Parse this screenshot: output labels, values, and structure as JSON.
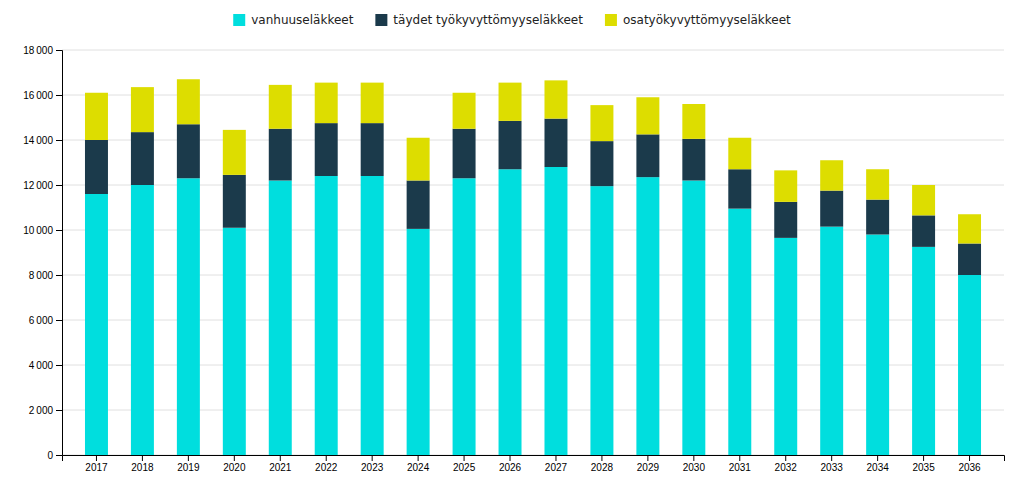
{
  "chart_data": {
    "type": "bar",
    "stacked": true,
    "grid": true,
    "legend": "top",
    "categories": [
      "2017",
      "2018",
      "2019",
      "2020",
      "2021",
      "2022",
      "2023",
      "2024",
      "2025",
      "2026",
      "2027",
      "2028",
      "2029",
      "2030",
      "2031",
      "2032",
      "2033",
      "2034",
      "2035",
      "2036"
    ],
    "series": [
      {
        "name": "vanhuuseläkkeet",
        "color": "#00DEDE",
        "values": [
          11600,
          12000,
          12300,
          10100,
          12200,
          12400,
          12400,
          10050,
          12300,
          12700,
          12800,
          11950,
          12350,
          12200,
          10950,
          9650,
          10150,
          9800,
          9250,
          8000
        ]
      },
      {
        "name": "täydet työkyvyttömyyseläkkeet",
        "color": "#1B3A4B",
        "values": [
          2400,
          2350,
          2400,
          2350,
          2300,
          2350,
          2350,
          2150,
          2200,
          2150,
          2150,
          2000,
          1900,
          1850,
          1750,
          1600,
          1600,
          1550,
          1400,
          1400
        ]
      },
      {
        "name": "osatyökyvyttömyyseläkkeet",
        "color": "#DDDD00",
        "values": [
          2100,
          2000,
          2000,
          2000,
          1950,
          1800,
          1800,
          1900,
          1600,
          1700,
          1700,
          1600,
          1650,
          1550,
          1400,
          1400,
          1350,
          1350,
          1350,
          1300
        ]
      }
    ],
    "ylim": [
      0,
      18000
    ],
    "yticks": [
      0,
      {
        "value": 2000,
        "label": "2 000"
      },
      {
        "value": 4000,
        "label": "4 000"
      },
      {
        "value": 6000,
        "label": "6 000"
      },
      {
        "value": 8000,
        "label": "8 000"
      },
      {
        "value": 10000,
        "label": "10 000"
      },
      {
        "value": 12000,
        "label": "12 000"
      },
      {
        "value": 14000,
        "label": "14 000"
      },
      {
        "value": 16000,
        "label": "16 000"
      },
      {
        "value": 18000,
        "label": "18 000"
      }
    ]
  }
}
